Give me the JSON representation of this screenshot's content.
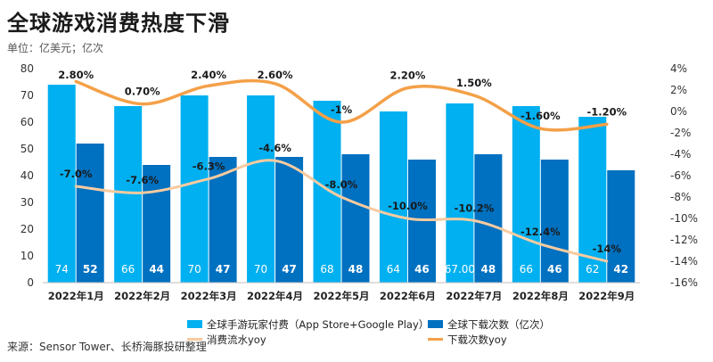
{
  "title": "全球游戏消费热度下滑",
  "unit": "单位：亿美元；亿次",
  "source": "来源：Sensor Tower、长桥海豚投研整理",
  "colors": {
    "spend_bar": "#00b0f0",
    "download_bar": "#0070c0",
    "spend_yoy_line": "#f8cba0",
    "download_yoy_line": "#f4a048"
  },
  "chart_data": {
    "type": "bar",
    "categories": [
      "2022年1月",
      "2022年2月",
      "2022年3月",
      "2022年4月",
      "2022年5月",
      "2022年6月",
      "2022年7月",
      "2022年8月",
      "2022年9月"
    ],
    "series": [
      {
        "name": "全球手游玩家付费（App Store+Google Play）",
        "type": "bar",
        "axis": "left",
        "values": [
          74,
          66,
          70,
          70,
          68,
          64,
          67,
          66,
          62
        ],
        "labels": [
          "74",
          "66",
          "70",
          "70",
          "68",
          "64",
          "67.00",
          "66",
          "62"
        ]
      },
      {
        "name": "全球下载次数（亿次）",
        "type": "bar",
        "axis": "left",
        "values": [
          52,
          44,
          47,
          47,
          48,
          46,
          48,
          46,
          42
        ],
        "labels": [
          "52",
          "44",
          "47",
          "47",
          "48",
          "46",
          "48",
          "46",
          "42"
        ]
      },
      {
        "name": "消费流水yoy",
        "type": "line",
        "axis": "right",
        "values": [
          -7.0,
          -7.6,
          -6.3,
          -4.6,
          -8.0,
          -10.0,
          -10.2,
          -12.4,
          -14.0
        ],
        "labels": [
          "-7.0%",
          "-7.6%",
          "-6.3%",
          "-4.6%",
          "-8.0%",
          "-10.0%",
          "-10.2%",
          "-12.4%",
          "-14%"
        ]
      },
      {
        "name": "下载次数yoy",
        "type": "line",
        "axis": "right",
        "values": [
          2.8,
          0.7,
          2.4,
          2.6,
          -1.0,
          2.2,
          1.5,
          -1.6,
          -1.2
        ],
        "labels": [
          "2.80%",
          "0.70%",
          "2.40%",
          "2.60%",
          "-1%",
          "2.20%",
          "1.50%",
          "-1.60%",
          "-1.20%"
        ]
      }
    ],
    "y_left": {
      "range": [
        0,
        80
      ],
      "ticks": [
        "0",
        "10",
        "20",
        "30",
        "40",
        "50",
        "60",
        "70",
        "80"
      ]
    },
    "y_right": {
      "range": [
        -16,
        4
      ],
      "ticks": [
        "-16%",
        "-14%",
        "-12%",
        "-10%",
        "-8%",
        "-6%",
        "-4%",
        "-2%",
        "0%",
        "2%",
        "4%"
      ]
    },
    "grid": false,
    "legend_position": "bottom"
  }
}
